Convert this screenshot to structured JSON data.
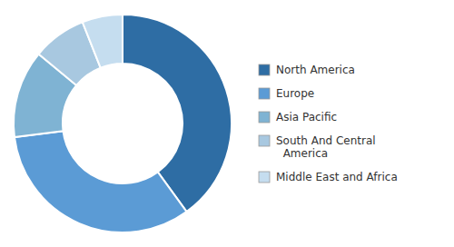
{
  "chart_data": {
    "type": "donut",
    "categories": [
      "North America",
      "Europe",
      "Asia Pacific",
      "South And Central\n  America",
      "Middle East and Africa"
    ],
    "values": [
      40,
      33,
      13,
      8,
      6
    ],
    "colors": [
      "#2e6da4",
      "#5b9bd5",
      "#7fb3d3",
      "#a8c8e0",
      "#c5ddef"
    ],
    "legend": "right"
  }
}
